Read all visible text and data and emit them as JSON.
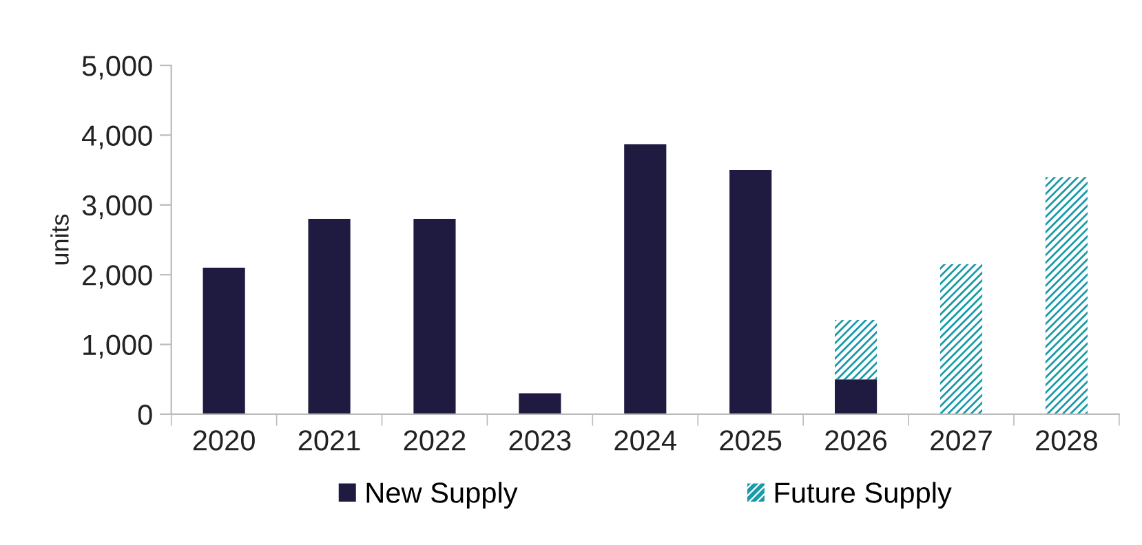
{
  "chart_data": {
    "type": "bar",
    "stacked": true,
    "ylabel": "units",
    "categories": [
      "2020",
      "2021",
      "2022",
      "2023",
      "2024",
      "2025",
      "2026",
      "2027",
      "2028"
    ],
    "series": [
      {
        "name": "New Supply",
        "color": "#1f1a40",
        "values": [
          2100,
          2800,
          2800,
          300,
          3870,
          3500,
          500,
          null,
          null
        ]
      },
      {
        "name": "Future Supply",
        "color": "#1a9aa8",
        "values": [
          null,
          null,
          null,
          null,
          null,
          null,
          850,
          2150,
          3400
        ]
      }
    ],
    "ylim": [
      0,
      5000
    ],
    "yticks": [
      {
        "value": 0,
        "label": "0"
      },
      {
        "value": 1000,
        "label": "1,000"
      },
      {
        "value": 2000,
        "label": "2,000"
      },
      {
        "value": 3000,
        "label": "3,000"
      },
      {
        "value": 4000,
        "label": "4,000"
      },
      {
        "value": 5000,
        "label": "5,000"
      }
    ],
    "grid": false,
    "legend": "bottom"
  }
}
